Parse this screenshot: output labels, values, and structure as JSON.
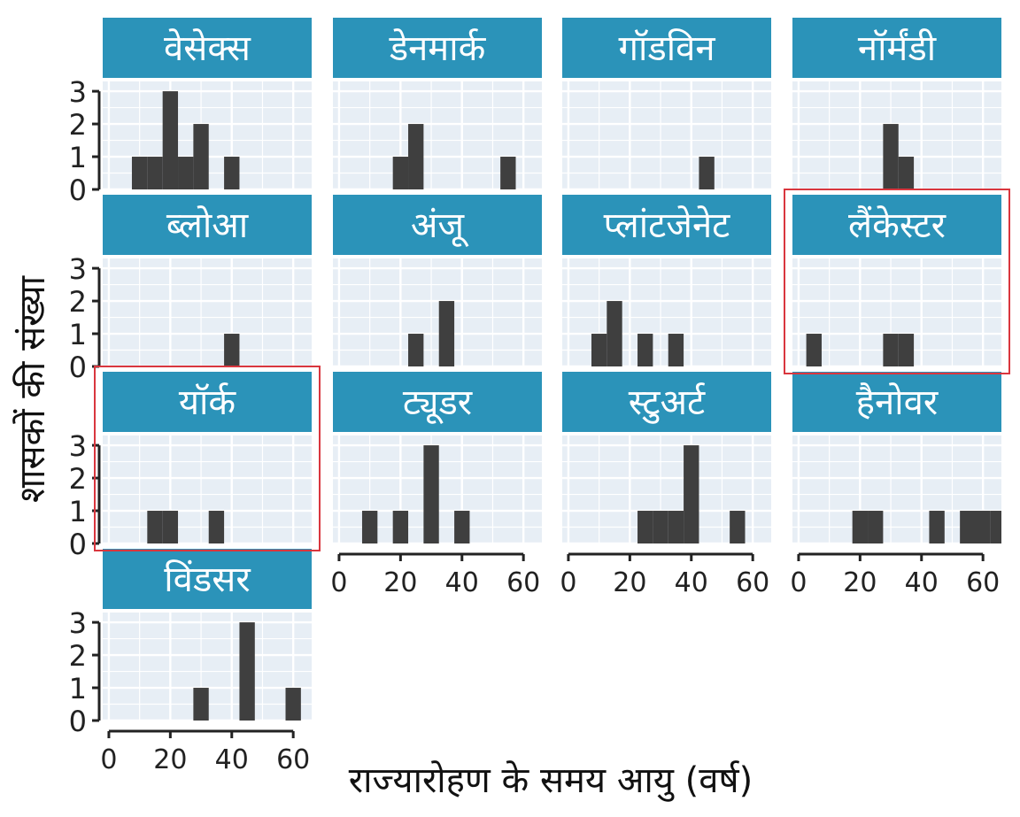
{
  "chart_data": {
    "type": "bar",
    "xlabel": "राज्यारोहण के समय आयु (वर्ष)",
    "ylabel": "शासकों की संख्या",
    "xlim": [
      -2,
      66
    ],
    "ylim": [
      0,
      3.3
    ],
    "x_ticks": [
      0,
      20,
      40,
      60
    ],
    "y_ticks": [
      0,
      1,
      2,
      3
    ],
    "bin_width": 5,
    "grid": true,
    "colors": {
      "strip": "#2b93b9",
      "strip_text": "#ffffff",
      "panel_bg": "#e7eef5",
      "grid": "#ffffff",
      "bar": "#3f3f3f",
      "highlight": "#d9363e"
    },
    "panels": [
      {
        "label": "वेसेक्स",
        "highlighted": false,
        "bins": [
          {
            "x0": 7.5,
            "x1": 12.5,
            "count": 1
          },
          {
            "x0": 12.5,
            "x1": 17.5,
            "count": 1
          },
          {
            "x0": 17.5,
            "x1": 22.5,
            "count": 3
          },
          {
            "x0": 22.5,
            "x1": 27.5,
            "count": 1
          },
          {
            "x0": 27.5,
            "x1": 32.5,
            "count": 2
          },
          {
            "x0": 37.5,
            "x1": 42.5,
            "count": 1
          }
        ]
      },
      {
        "label": "डेनमार्क",
        "highlighted": false,
        "bins": [
          {
            "x0": 17.5,
            "x1": 22.5,
            "count": 1
          },
          {
            "x0": 22.5,
            "x1": 27.5,
            "count": 2
          },
          {
            "x0": 52.5,
            "x1": 57.5,
            "count": 1
          }
        ]
      },
      {
        "label": "गॉडविन",
        "highlighted": false,
        "bins": [
          {
            "x0": 42.5,
            "x1": 47.5,
            "count": 1
          }
        ]
      },
      {
        "label": "नॉर्मंडी",
        "highlighted": false,
        "bins": [
          {
            "x0": 27.5,
            "x1": 32.5,
            "count": 2
          },
          {
            "x0": 32.5,
            "x1": 37.5,
            "count": 1
          }
        ]
      },
      {
        "label": "ब्लोआ",
        "highlighted": false,
        "bins": [
          {
            "x0": 37.5,
            "x1": 42.5,
            "count": 1
          }
        ]
      },
      {
        "label": "अंजू",
        "highlighted": false,
        "bins": [
          {
            "x0": 22.5,
            "x1": 27.5,
            "count": 1
          },
          {
            "x0": 32.5,
            "x1": 37.5,
            "count": 2
          }
        ]
      },
      {
        "label": "प्लांटजेनेट",
        "highlighted": false,
        "bins": [
          {
            "x0": 7.5,
            "x1": 12.5,
            "count": 1
          },
          {
            "x0": 12.5,
            "x1": 17.5,
            "count": 2
          },
          {
            "x0": 22.5,
            "x1": 27.5,
            "count": 1
          },
          {
            "x0": 32.5,
            "x1": 37.5,
            "count": 1
          }
        ]
      },
      {
        "label": "लैंकेस्टर",
        "highlighted": true,
        "bins": [
          {
            "x0": 2.5,
            "x1": 7.5,
            "count": 1
          },
          {
            "x0": 27.5,
            "x1": 32.5,
            "count": 1
          },
          {
            "x0": 32.5,
            "x1": 37.5,
            "count": 1
          }
        ]
      },
      {
        "label": "यॉर्क",
        "highlighted": true,
        "bins": [
          {
            "x0": 12.5,
            "x1": 17.5,
            "count": 1
          },
          {
            "x0": 17.5,
            "x1": 22.5,
            "count": 1
          },
          {
            "x0": 32.5,
            "x1": 37.5,
            "count": 1
          }
        ]
      },
      {
        "label": "ट्यूडर",
        "highlighted": false,
        "bins": [
          {
            "x0": 7.5,
            "x1": 12.5,
            "count": 1
          },
          {
            "x0": 17.5,
            "x1": 22.5,
            "count": 1
          },
          {
            "x0": 27.5,
            "x1": 32.5,
            "count": 3
          },
          {
            "x0": 37.5,
            "x1": 42.5,
            "count": 1
          }
        ]
      },
      {
        "label": "स्टुअर्ट",
        "highlighted": false,
        "bins": [
          {
            "x0": 22.5,
            "x1": 27.5,
            "count": 1
          },
          {
            "x0": 27.5,
            "x1": 32.5,
            "count": 1
          },
          {
            "x0": 32.5,
            "x1": 37.5,
            "count": 1
          },
          {
            "x0": 37.5,
            "x1": 42.5,
            "count": 3
          },
          {
            "x0": 52.5,
            "x1": 57.5,
            "count": 1
          }
        ]
      },
      {
        "label": "हैनोवर",
        "highlighted": false,
        "bins": [
          {
            "x0": 17.5,
            "x1": 22.5,
            "count": 1
          },
          {
            "x0": 22.5,
            "x1": 27.5,
            "count": 1
          },
          {
            "x0": 42.5,
            "x1": 47.5,
            "count": 1
          },
          {
            "x0": 52.5,
            "x1": 57.5,
            "count": 1
          },
          {
            "x0": 57.5,
            "x1": 62.5,
            "count": 1
          },
          {
            "x0": 62.5,
            "x1": 67.5,
            "count": 1
          }
        ]
      },
      {
        "label": "विंडसर",
        "highlighted": false,
        "bins": [
          {
            "x0": 27.5,
            "x1": 32.5,
            "count": 1
          },
          {
            "x0": 42.5,
            "x1": 47.5,
            "count": 3
          },
          {
            "x0": 57.5,
            "x1": 62.5,
            "count": 1
          }
        ]
      }
    ]
  }
}
